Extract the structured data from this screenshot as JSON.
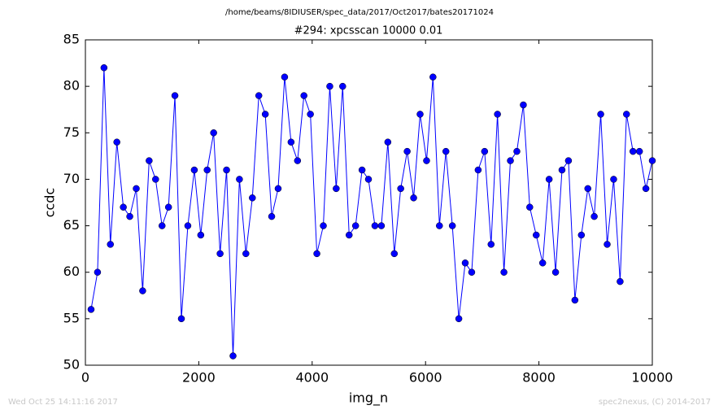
{
  "chart_data": {
    "type": "line",
    "suptitle": "/home/beams/8IDIUSER/spec_data/2017/Oct2017/bates20171024",
    "title": "#294: xpcsscan 10000 0.01",
    "xlabel": "img_n",
    "ylabel": "ccdc",
    "timestamp": "Wed Oct 25 14:11:16 2017",
    "credit": "spec2nexus, (C) 2014-2017",
    "color": "#0000ff",
    "marker": "circle",
    "x": [
      100,
      214,
      328,
      441,
      555,
      669,
      783,
      897,
      1010,
      1124,
      1238,
      1352,
      1466,
      1579,
      1693,
      1807,
      1921,
      2035,
      2148,
      2262,
      2376,
      2490,
      2604,
      2717,
      2831,
      2945,
      3059,
      3173,
      3286,
      3400,
      3514,
      3628,
      3742,
      3855,
      3969,
      4083,
      4197,
      4311,
      4424,
      4538,
      4652,
      4766,
      4880,
      4993,
      5107,
      5221,
      5335,
      5449,
      5562,
      5676,
      5790,
      5904,
      6018,
      6131,
      6245,
      6359,
      6473,
      6587,
      6700,
      6814,
      6928,
      7042,
      7156,
      7269,
      7383,
      7497,
      7611,
      7725,
      7838,
      7952,
      8066,
      8180,
      8294,
      8407,
      8521,
      8635,
      8749,
      8863,
      8976,
      9090,
      9204,
      9318,
      9432,
      9545,
      9659,
      9773,
      9887,
      10000
    ],
    "values": [
      56,
      60,
      82,
      63,
      74,
      67,
      66,
      69,
      58,
      72,
      70,
      65,
      67,
      79,
      55,
      65,
      71,
      64,
      71,
      75,
      62,
      71,
      51,
      70,
      62,
      68,
      79,
      77,
      66,
      69,
      81,
      74,
      72,
      79,
      77,
      62,
      65,
      80,
      69,
      80,
      64,
      65,
      71,
      70,
      65,
      65,
      74,
      62,
      69,
      73,
      68,
      77,
      72,
      81,
      65,
      73,
      65,
      55,
      61,
      60,
      71,
      73,
      63,
      77,
      60,
      72,
      73,
      78,
      67,
      64,
      61,
      70,
      60,
      71,
      72,
      57,
      64,
      69,
      66,
      77,
      63,
      70,
      59,
      77,
      73,
      73,
      69,
      72
    ],
    "xlim": [
      0,
      10000
    ],
    "ylim": [
      50,
      85
    ],
    "xticks": [
      0,
      2000,
      4000,
      6000,
      8000,
      10000
    ],
    "yticks": [
      50,
      55,
      60,
      65,
      70,
      75,
      80,
      85
    ],
    "grid": false
  }
}
